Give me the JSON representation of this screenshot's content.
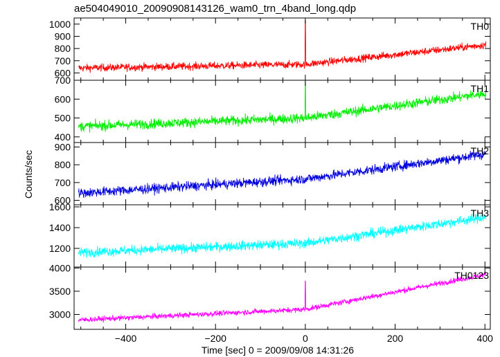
{
  "chart_data": {
    "type": "line",
    "title": "ae504049010_20090908143126_wam0_trn_4band_long.qdp",
    "xlabel": "Time [sec] 0 = 2009/09/08 14:31:26",
    "ylabel": "Counts/sec",
    "xlim": [
      -515,
      412
    ],
    "xticks": [
      -400,
      -200,
      0,
      200,
      400
    ],
    "xtick_labels": [
      "−400",
      "−200",
      "0",
      "200",
      "400"
    ],
    "panels": [
      {
        "name": "TH0",
        "color": "#ff0000",
        "ylim": [
          540,
          1050
        ],
        "yticks": [
          600,
          700,
          800,
          900,
          1000
        ],
        "start": 640,
        "end": 830,
        "mid": 670,
        "noise": 40,
        "spike": {
          "x": 0,
          "y": 1030
        }
      },
      {
        "name": "TH1",
        "color": "#00ee00",
        "ylim": [
          370,
          700
        ],
        "yticks": [
          400,
          500,
          600,
          700
        ],
        "start": 455,
        "end": 630,
        "mid": 500,
        "noise": 34,
        "spike": {
          "x": 0,
          "y": 690
        }
      },
      {
        "name": "TH2",
        "color": "#0000dd",
        "ylim": [
          575,
          925
        ],
        "yticks": [
          600,
          700,
          800,
          900
        ],
        "start": 640,
        "end": 860,
        "mid": 720,
        "noise": 35,
        "spike": null
      },
      {
        "name": "TH3",
        "color": "#00ffff",
        "ylim": [
          1020,
          1620
        ],
        "yticks": [
          1200,
          1400,
          1600
        ],
        "start": 1160,
        "end": 1500,
        "mid": 1250,
        "noise": 60,
        "spike": null
      },
      {
        "name": "TH0123",
        "color": "#ff00ff",
        "ylim": [
          2680,
          4020
        ],
        "yticks": [
          3000,
          3500,
          4000
        ],
        "start": 2880,
        "end": 3860,
        "mid": 3110,
        "noise": 75,
        "spike": {
          "x": 0,
          "y": 3720
        }
      }
    ]
  }
}
